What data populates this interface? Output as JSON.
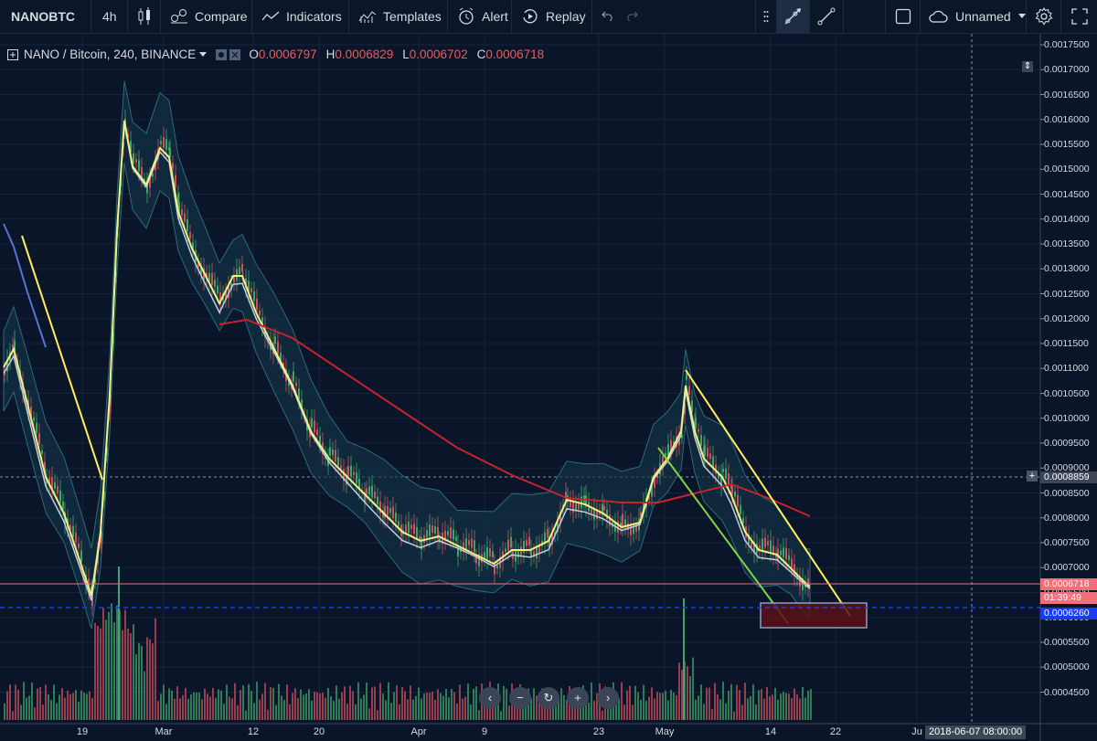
{
  "toolbar": {
    "symbol": "NANOBTC",
    "interval": "4h",
    "compare_label": "Compare",
    "indicators_label": "Indicators",
    "templates_label": "Templates",
    "alert_label": "Alert",
    "replay_label": "Replay",
    "layout_name": "Unnamed"
  },
  "legend": {
    "title": "NANO / Bitcoin, 240, BINANCE",
    "o_label": "O",
    "o_value": "0.0006797",
    "h_label": "H",
    "h_value": "0.0006829",
    "l_label": "L",
    "l_value": "0.0006702",
    "c_label": "C",
    "c_value": "0.0006718"
  },
  "price_axis": {
    "labels": [
      "0.0017500",
      "0.0017000",
      "0.0016500",
      "0.0016000",
      "0.0015500",
      "0.0015000",
      "0.0014500",
      "0.0014000",
      "0.0013500",
      "0.0013000",
      "0.0012500",
      "0.0012000",
      "0.0011500",
      "0.0011000",
      "0.0010500",
      "0.0010000",
      "0.0009500",
      "0.0009000",
      "0.0008500",
      "0.0008000",
      "0.0007500",
      "0.0007000",
      "0.0006500",
      "0.0006000",
      "0.0005500",
      "0.0005000",
      "0.0004500"
    ],
    "crosshair_price": "0.0008859",
    "last_price": "0.0006718",
    "countdown": "01:39:49",
    "line_price": "0.0006260"
  },
  "time_axis": {
    "labels": [
      "19",
      "Mar",
      "12",
      "20",
      "Apr",
      "9",
      "23",
      "May",
      "14",
      "22",
      "Ju"
    ],
    "crosshair_time": "2018-06-07 08:00:00"
  },
  "colors": {
    "background": "#0a1529",
    "up": "#3fa66a",
    "down": "#d24f5e",
    "ma_yellow": "#f2f080",
    "ma_red": "#c8232c",
    "ma_blue": "#5b6fd6",
    "ma_white": "#c5cde0",
    "bands": "#2c6b7a",
    "trend_yellow": "#ffef5a",
    "trend_green": "#7fd44a",
    "last_price": "#f0707a",
    "line_price": "#1a3cf0"
  },
  "icons": [
    "candles-icon",
    "compare-icon",
    "indicators-icon",
    "templates-icon",
    "alert-icon",
    "replay-icon",
    "undo-icon",
    "redo-icon",
    "drag-icon",
    "ray-icon",
    "line-icon",
    "square-icon",
    "cloud-icon",
    "dropdown-icon",
    "gear-icon",
    "fullscreen-icon"
  ]
}
